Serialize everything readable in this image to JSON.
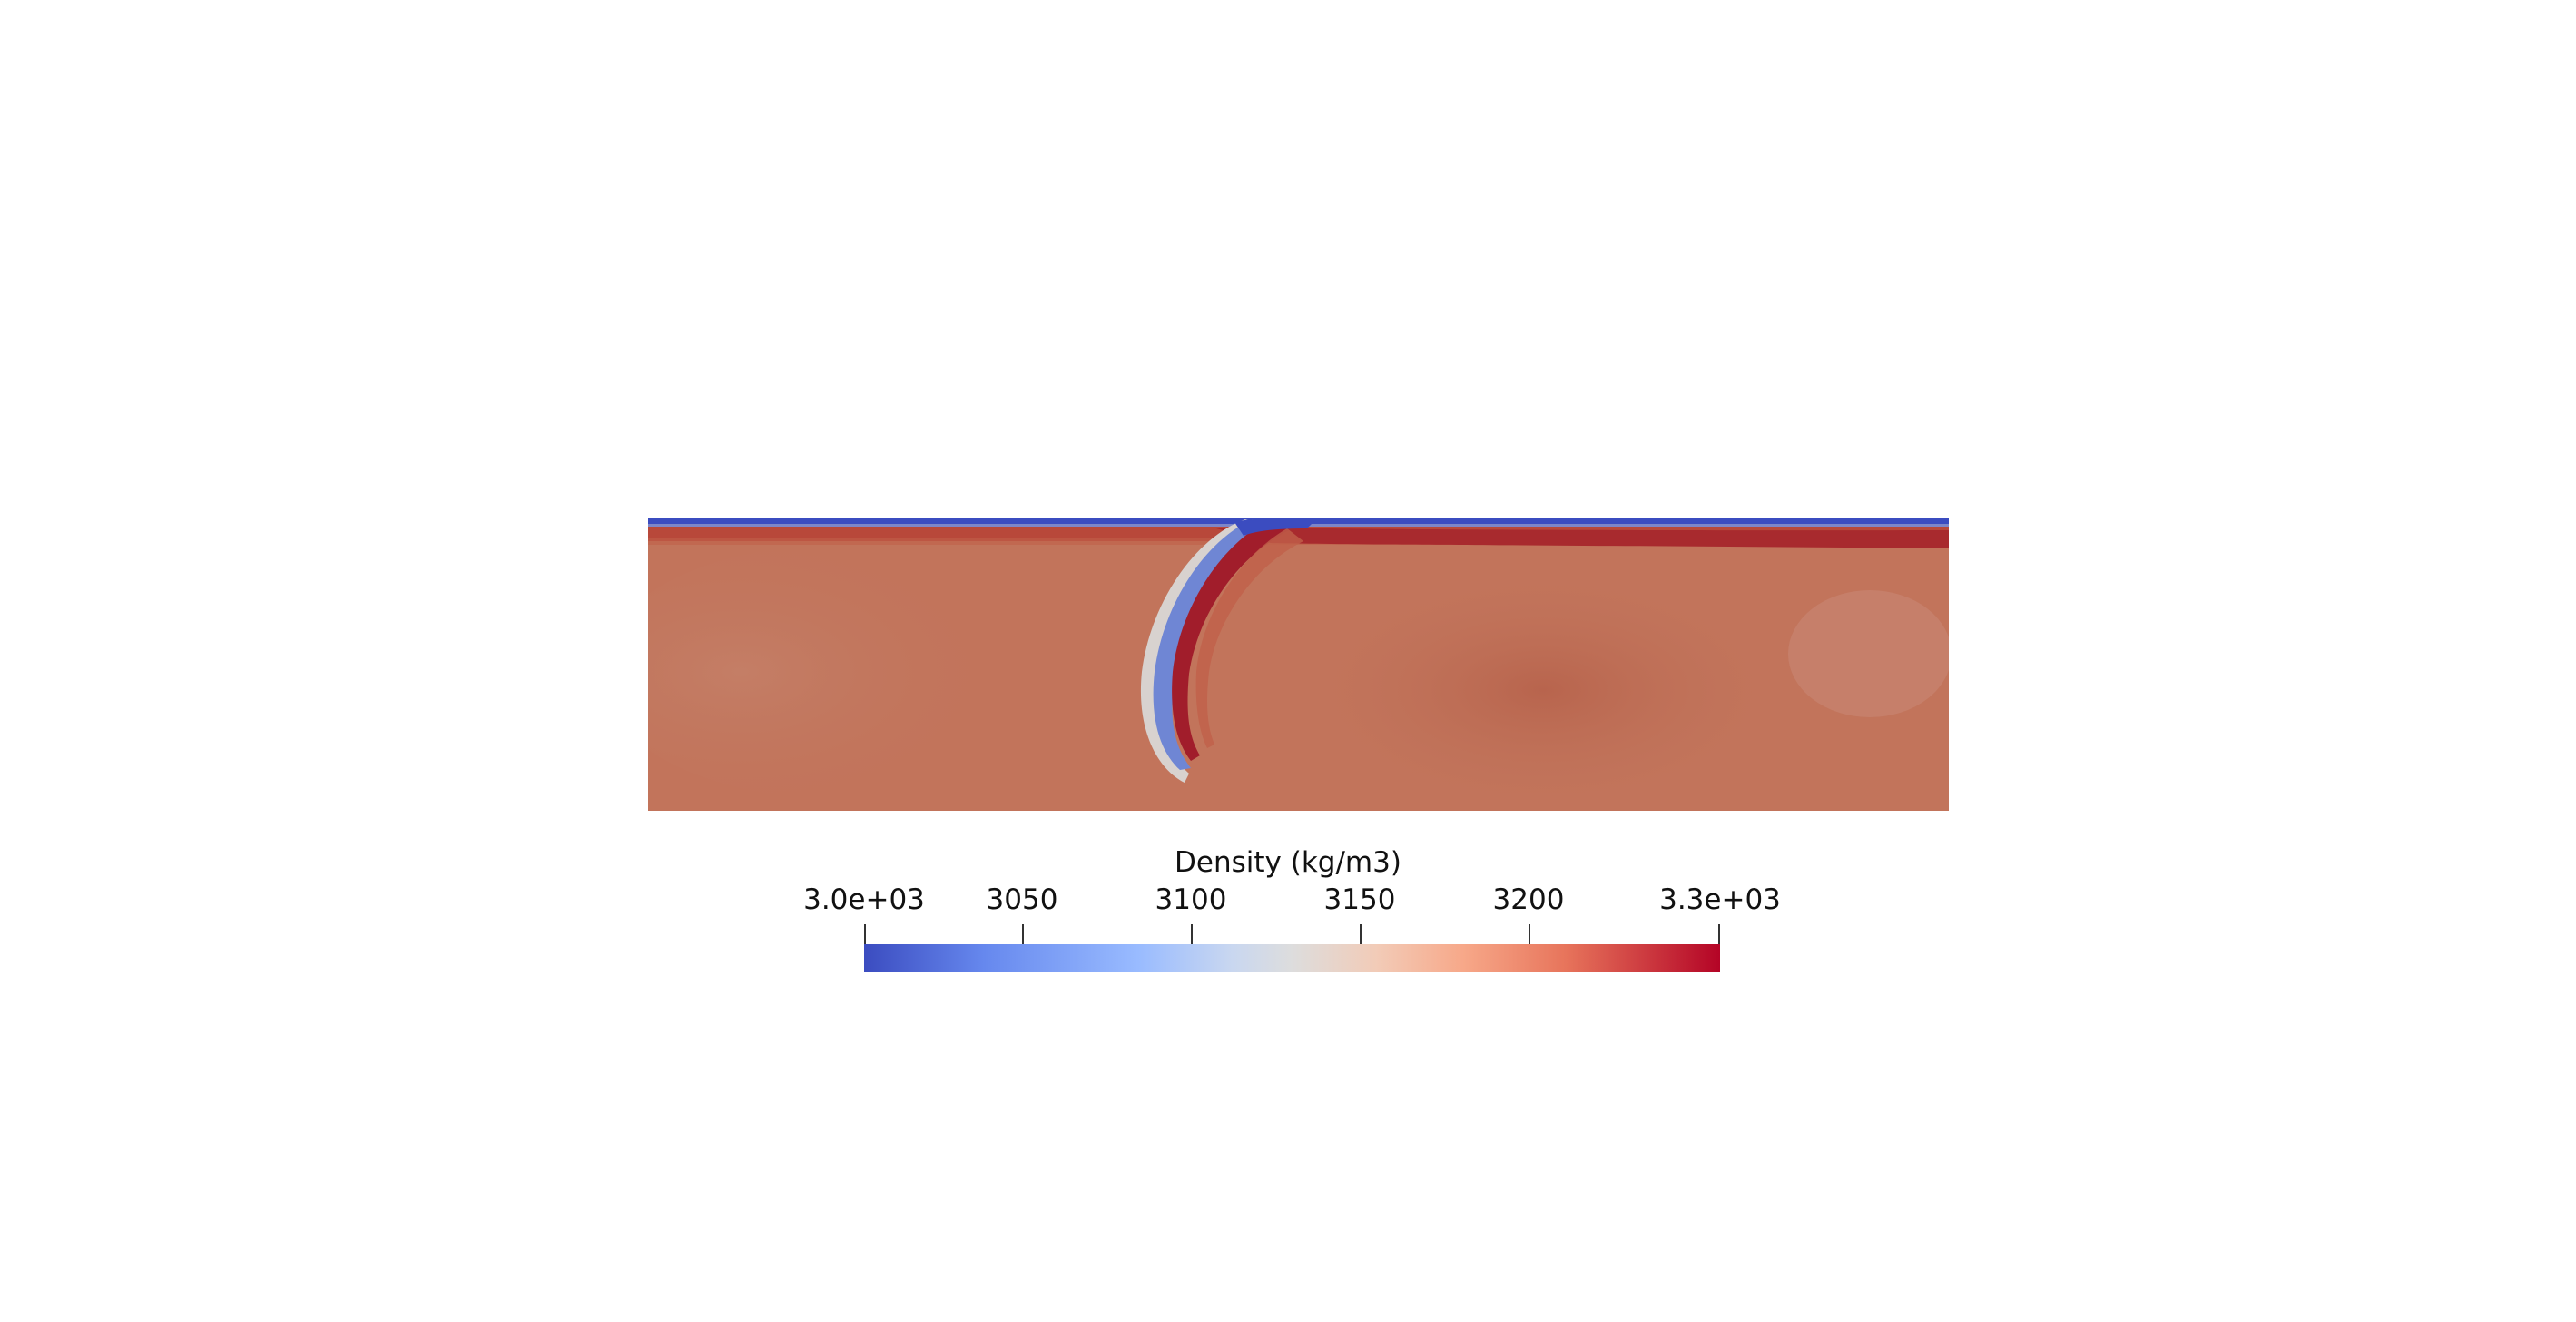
{
  "legend": {
    "title": "Density (kg/m3)",
    "ticks": [
      "3.0e+03",
      "3050",
      "3100",
      "3150",
      "3200",
      "3.3e+03"
    ],
    "tick_values": [
      3000,
      3050,
      3100,
      3150,
      3200,
      3300
    ],
    "range": [
      3000,
      3300
    ],
    "colormap": {
      "low": "#3b4cc0",
      "mid": "#dddddd",
      "high": "#b40426"
    }
  },
  "field": {
    "background_color": "#c0735a",
    "surface_layer_color": "#3b4cc0",
    "slab_color": "#b40426"
  }
}
